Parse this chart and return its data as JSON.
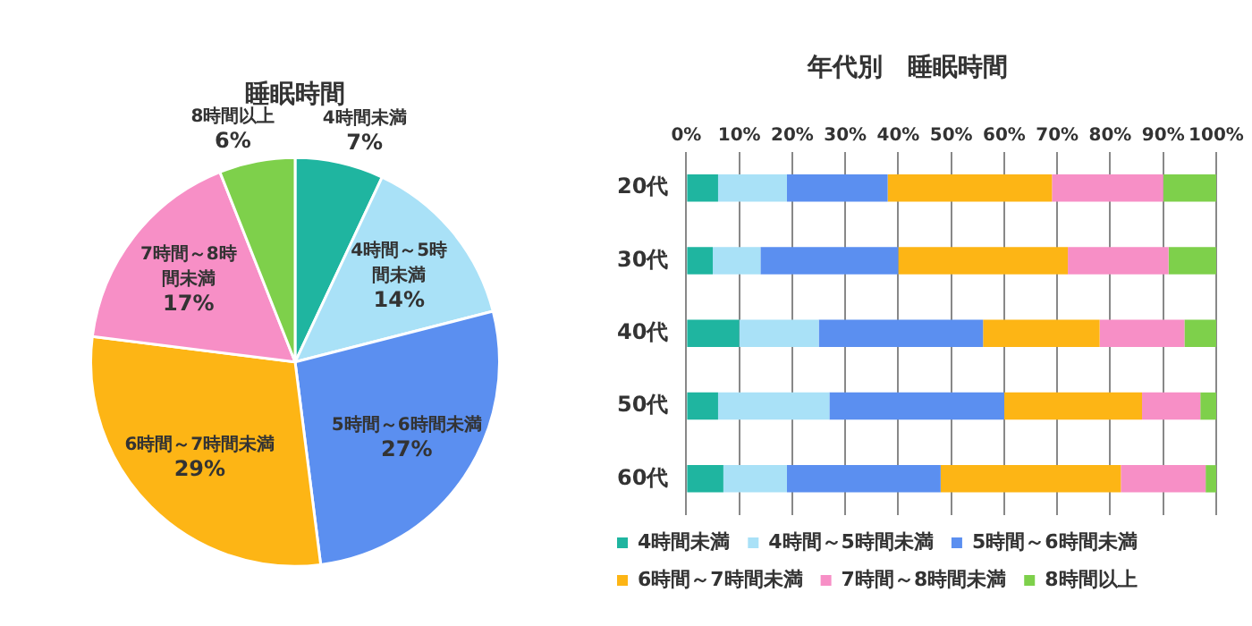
{
  "chart_data": [
    {
      "type": "pie",
      "title": "睡眠時間",
      "categories": [
        "4時間未満",
        "4時間～5時間未満",
        "5時間～6時間未満",
        "6時間～7時間未満",
        "7時間～8時間未満",
        "8時間以上"
      ],
      "values": [
        7,
        14,
        27,
        29,
        17,
        6
      ],
      "value_labels": [
        "7%",
        "14%",
        "27%",
        "29%",
        "17%",
        "6%"
      ],
      "colors": [
        "#1fb5a0",
        "#a9e1f7",
        "#5b8ff0",
        "#fdb515",
        "#f78fc6",
        "#7ed04b"
      ],
      "legend": false
    },
    {
      "type": "bar",
      "title": "年代別　睡眠時間",
      "orientation": "horizontal",
      "stacked": true,
      "categories": [
        "20代",
        "30代",
        "40代",
        "50代",
        "60代"
      ],
      "series": [
        {
          "name": "4時間未満",
          "color": "#1fb5a0",
          "values": [
            6,
            5,
            10,
            6,
            7
          ]
        },
        {
          "name": "4時間～5時間未満",
          "color": "#a9e1f7",
          "values": [
            13,
            9,
            15,
            21,
            12
          ]
        },
        {
          "name": "5時間～6時間未満",
          "color": "#5b8ff0",
          "values": [
            19,
            26,
            31,
            33,
            29
          ]
        },
        {
          "name": "6時間～7時間未満",
          "color": "#fdb515",
          "values": [
            31,
            32,
            22,
            26,
            34
          ]
        },
        {
          "name": "7時間～8時間未満",
          "color": "#f78fc6",
          "values": [
            21,
            19,
            16,
            11,
            16
          ]
        },
        {
          "name": "8時間以上",
          "color": "#7ed04b",
          "values": [
            10,
            9,
            6,
            3,
            2
          ]
        }
      ],
      "xlim": [
        0,
        100
      ],
      "xticks": [
        {
          "value": 0,
          "label": "0%"
        },
        {
          "value": 10,
          "label": "10%"
        },
        {
          "value": 20,
          "label": "20%"
        },
        {
          "value": 30,
          "label": "30%"
        },
        {
          "value": 40,
          "label": "40%"
        },
        {
          "value": 50,
          "label": "50%"
        },
        {
          "value": 60,
          "label": "60%"
        },
        {
          "value": 70,
          "label": "70%"
        },
        {
          "value": 80,
          "label": "80%"
        },
        {
          "value": 90,
          "label": "90%"
        },
        {
          "value": 100,
          "label": "100%"
        }
      ],
      "grid": "x",
      "legend": "bottom"
    }
  ]
}
